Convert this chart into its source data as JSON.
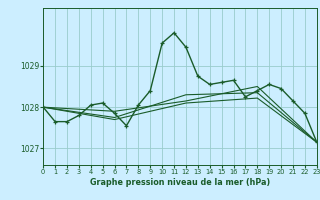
{
  "title": "Graphe pression niveau de la mer (hPa)",
  "bg_color": "#cceeff",
  "grid_color": "#99cccc",
  "line_color": "#1a5c2a",
  "xlim": [
    0,
    23
  ],
  "ylim": [
    1026.6,
    1030.4
  ],
  "yticks": [
    1027,
    1028,
    1029
  ],
  "xticks": [
    0,
    1,
    2,
    3,
    4,
    5,
    6,
    7,
    8,
    9,
    10,
    11,
    12,
    13,
    14,
    15,
    16,
    17,
    18,
    19,
    20,
    21,
    22,
    23
  ],
  "series_main": {
    "x": [
      0,
      1,
      2,
      3,
      4,
      5,
      6,
      7,
      8,
      9,
      10,
      11,
      12,
      13,
      14,
      15,
      16,
      17,
      18,
      19,
      20,
      21,
      22,
      23
    ],
    "y": [
      1028.0,
      1027.65,
      1027.65,
      1027.8,
      1028.05,
      1028.1,
      1027.85,
      1027.55,
      1028.05,
      1028.4,
      1029.55,
      1029.8,
      1029.45,
      1028.75,
      1028.55,
      1028.6,
      1028.65,
      1028.25,
      1028.4,
      1028.55,
      1028.45,
      1028.15,
      1027.85,
      1027.15
    ]
  },
  "series_secondary": [
    {
      "x": [
        0,
        6,
        12,
        18,
        23
      ],
      "y": [
        1028.0,
        1027.9,
        1028.15,
        1028.5,
        1027.15
      ]
    },
    {
      "x": [
        0,
        6,
        12,
        18,
        23
      ],
      "y": [
        1028.0,
        1027.75,
        1028.3,
        1028.35,
        1027.15
      ]
    },
    {
      "x": [
        0,
        6,
        12,
        18,
        23
      ],
      "y": [
        1028.0,
        1027.7,
        1028.1,
        1028.22,
        1027.15
      ]
    }
  ]
}
